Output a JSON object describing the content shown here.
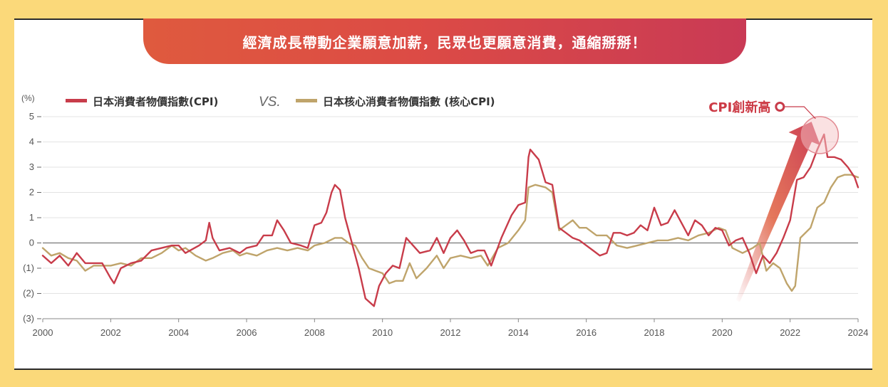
{
  "banner": {
    "title": "經濟成長帶動企業願意加薪，民眾也更願意消費，通縮掰掰！"
  },
  "colors": {
    "cpi": "#c83c4a",
    "core_cpi": "#bfa46b",
    "banner_start": "#df5a3e",
    "banner_end": "#c93a55",
    "background": "#fbd97a"
  },
  "annotation": {
    "label": "CPI創新高"
  },
  "chart_data": {
    "type": "line",
    "title": "",
    "unit_label": "(%)",
    "xlabel": "",
    "ylabel": "",
    "xlim": [
      2000,
      2024
    ],
    "ylim": [
      -3,
      5
    ],
    "x_ticks": [
      2000,
      2002,
      2004,
      2006,
      2008,
      2010,
      2012,
      2014,
      2016,
      2018,
      2020,
      2022,
      2024
    ],
    "y_ticks": [
      5,
      4,
      3,
      2,
      1,
      0,
      -1,
      -2,
      -3
    ],
    "y_tick_labels": [
      "5",
      "4",
      "3",
      "2",
      "1",
      "0",
      "(1)",
      "(2)",
      "(3)"
    ],
    "legend_separator": "VS.",
    "legend_position": "top-left",
    "grid": true,
    "series": [
      {
        "name": "日本消費者物價指數(CPI)",
        "color": "#c83c4a",
        "points": [
          [
            2000.0,
            -0.5
          ],
          [
            2000.25,
            -0.8
          ],
          [
            2000.5,
            -0.5
          ],
          [
            2000.75,
            -0.9
          ],
          [
            2001.0,
            -0.4
          ],
          [
            2001.25,
            -0.8
          ],
          [
            2001.5,
            -0.8
          ],
          [
            2001.75,
            -0.8
          ],
          [
            2002.0,
            -1.4
          ],
          [
            2002.1,
            -1.6
          ],
          [
            2002.3,
            -1.0
          ],
          [
            2002.6,
            -0.8
          ],
          [
            2002.9,
            -0.7
          ],
          [
            2003.2,
            -0.3
          ],
          [
            2003.5,
            -0.2
          ],
          [
            2003.8,
            -0.1
          ],
          [
            2004.0,
            -0.1
          ],
          [
            2004.2,
            -0.4
          ],
          [
            2004.6,
            -0.1
          ],
          [
            2004.8,
            0.1
          ],
          [
            2004.9,
            0.8
          ],
          [
            2005.0,
            0.2
          ],
          [
            2005.2,
            -0.3
          ],
          [
            2005.5,
            -0.2
          ],
          [
            2005.8,
            -0.4
          ],
          [
            2006.0,
            -0.2
          ],
          [
            2006.3,
            -0.1
          ],
          [
            2006.5,
            0.3
          ],
          [
            2006.75,
            0.3
          ],
          [
            2006.9,
            0.9
          ],
          [
            2007.1,
            0.5
          ],
          [
            2007.3,
            0.0
          ],
          [
            2007.6,
            -0.1
          ],
          [
            2007.8,
            -0.2
          ],
          [
            2008.0,
            0.7
          ],
          [
            2008.2,
            0.8
          ],
          [
            2008.35,
            1.2
          ],
          [
            2008.5,
            2.0
          ],
          [
            2008.6,
            2.3
          ],
          [
            2008.75,
            2.1
          ],
          [
            2008.9,
            1.0
          ],
          [
            2009.1,
            0.0
          ],
          [
            2009.3,
            -1.0
          ],
          [
            2009.5,
            -2.2
          ],
          [
            2009.75,
            -2.5
          ],
          [
            2009.9,
            -1.7
          ],
          [
            2010.1,
            -1.2
          ],
          [
            2010.3,
            -0.9
          ],
          [
            2010.5,
            -1.0
          ],
          [
            2010.7,
            0.2
          ],
          [
            2010.9,
            -0.1
          ],
          [
            2011.1,
            -0.4
          ],
          [
            2011.4,
            -0.3
          ],
          [
            2011.6,
            0.2
          ],
          [
            2011.8,
            -0.4
          ],
          [
            2012.0,
            0.2
          ],
          [
            2012.2,
            0.5
          ],
          [
            2012.4,
            0.1
          ],
          [
            2012.6,
            -0.4
          ],
          [
            2012.8,
            -0.3
          ],
          [
            2013.0,
            -0.3
          ],
          [
            2013.2,
            -0.9
          ],
          [
            2013.5,
            0.2
          ],
          [
            2013.8,
            1.1
          ],
          [
            2014.0,
            1.5
          ],
          [
            2014.2,
            1.6
          ],
          [
            2014.3,
            3.4
          ],
          [
            2014.35,
            3.7
          ],
          [
            2014.6,
            3.3
          ],
          [
            2014.8,
            2.4
          ],
          [
            2015.0,
            2.3
          ],
          [
            2015.2,
            0.6
          ],
          [
            2015.4,
            0.4
          ],
          [
            2015.6,
            0.2
          ],
          [
            2015.8,
            0.1
          ],
          [
            2016.0,
            -0.1
          ],
          [
            2016.2,
            -0.3
          ],
          [
            2016.4,
            -0.5
          ],
          [
            2016.6,
            -0.4
          ],
          [
            2016.8,
            0.4
          ],
          [
            2017.0,
            0.4
          ],
          [
            2017.2,
            0.3
          ],
          [
            2017.4,
            0.4
          ],
          [
            2017.6,
            0.7
          ],
          [
            2017.8,
            0.5
          ],
          [
            2018.0,
            1.4
          ],
          [
            2018.2,
            0.7
          ],
          [
            2018.4,
            0.8
          ],
          [
            2018.6,
            1.3
          ],
          [
            2018.8,
            0.8
          ],
          [
            2019.0,
            0.3
          ],
          [
            2019.2,
            0.9
          ],
          [
            2019.4,
            0.7
          ],
          [
            2019.6,
            0.3
          ],
          [
            2019.8,
            0.6
          ],
          [
            2020.0,
            0.5
          ],
          [
            2020.2,
            -0.1
          ],
          [
            2020.4,
            0.1
          ],
          [
            2020.6,
            0.2
          ],
          [
            2020.8,
            -0.4
          ],
          [
            2021.0,
            -1.2
          ],
          [
            2021.2,
            -0.5
          ],
          [
            2021.4,
            -0.8
          ],
          [
            2021.6,
            -0.4
          ],
          [
            2021.8,
            0.2
          ],
          [
            2022.0,
            0.9
          ],
          [
            2022.2,
            2.5
          ],
          [
            2022.4,
            2.6
          ],
          [
            2022.6,
            3.0
          ],
          [
            2022.8,
            3.7
          ],
          [
            2023.0,
            4.3
          ],
          [
            2023.1,
            3.4
          ],
          [
            2023.3,
            3.4
          ],
          [
            2023.5,
            3.3
          ],
          [
            2023.7,
            3.0
          ],
          [
            2023.9,
            2.6
          ],
          [
            2024.0,
            2.2
          ]
        ]
      },
      {
        "name": "日本核心消費者物價指數 (核心CPI)",
        "color": "#bfa46b",
        "points": [
          [
            2000.0,
            -0.2
          ],
          [
            2000.25,
            -0.5
          ],
          [
            2000.5,
            -0.4
          ],
          [
            2000.75,
            -0.6
          ],
          [
            2001.0,
            -0.7
          ],
          [
            2001.25,
            -1.1
          ],
          [
            2001.5,
            -0.9
          ],
          [
            2001.75,
            -0.9
          ],
          [
            2002.0,
            -0.9
          ],
          [
            2002.3,
            -0.8
          ],
          [
            2002.6,
            -0.9
          ],
          [
            2002.9,
            -0.6
          ],
          [
            2003.2,
            -0.6
          ],
          [
            2003.5,
            -0.4
          ],
          [
            2003.8,
            -0.1
          ],
          [
            2004.0,
            -0.3
          ],
          [
            2004.2,
            -0.2
          ],
          [
            2004.5,
            -0.5
          ],
          [
            2004.8,
            -0.7
          ],
          [
            2005.0,
            -0.6
          ],
          [
            2005.3,
            -0.4
          ],
          [
            2005.6,
            -0.3
          ],
          [
            2005.8,
            -0.5
          ],
          [
            2006.0,
            -0.4
          ],
          [
            2006.3,
            -0.5
          ],
          [
            2006.6,
            -0.3
          ],
          [
            2006.9,
            -0.2
          ],
          [
            2007.2,
            -0.3
          ],
          [
            2007.5,
            -0.2
          ],
          [
            2007.8,
            -0.3
          ],
          [
            2008.0,
            -0.1
          ],
          [
            2008.3,
            0.0
          ],
          [
            2008.6,
            0.2
          ],
          [
            2008.8,
            0.2
          ],
          [
            2009.0,
            0.0
          ],
          [
            2009.2,
            -0.1
          ],
          [
            2009.4,
            -0.6
          ],
          [
            2009.6,
            -1.0
          ],
          [
            2009.8,
            -1.1
          ],
          [
            2010.0,
            -1.2
          ],
          [
            2010.2,
            -1.6
          ],
          [
            2010.4,
            -1.5
          ],
          [
            2010.6,
            -1.5
          ],
          [
            2010.8,
            -0.8
          ],
          [
            2011.0,
            -1.4
          ],
          [
            2011.3,
            -1.0
          ],
          [
            2011.6,
            -0.5
          ],
          [
            2011.8,
            -1.0
          ],
          [
            2012.0,
            -0.6
          ],
          [
            2012.3,
            -0.5
          ],
          [
            2012.6,
            -0.6
          ],
          [
            2012.9,
            -0.5
          ],
          [
            2013.1,
            -0.9
          ],
          [
            2013.4,
            -0.2
          ],
          [
            2013.7,
            0.0
          ],
          [
            2014.0,
            0.5
          ],
          [
            2014.2,
            0.9
          ],
          [
            2014.3,
            2.2
          ],
          [
            2014.5,
            2.3
          ],
          [
            2014.8,
            2.2
          ],
          [
            2015.0,
            2.0
          ],
          [
            2015.2,
            0.5
          ],
          [
            2015.4,
            0.7
          ],
          [
            2015.6,
            0.9
          ],
          [
            2015.8,
            0.6
          ],
          [
            2016.0,
            0.6
          ],
          [
            2016.3,
            0.3
          ],
          [
            2016.6,
            0.3
          ],
          [
            2016.9,
            -0.1
          ],
          [
            2017.2,
            -0.2
          ],
          [
            2017.5,
            -0.1
          ],
          [
            2017.8,
            0.0
          ],
          [
            2018.1,
            0.1
          ],
          [
            2018.4,
            0.1
          ],
          [
            2018.7,
            0.2
          ],
          [
            2019.0,
            0.1
          ],
          [
            2019.3,
            0.3
          ],
          [
            2019.6,
            0.4
          ],
          [
            2019.9,
            0.6
          ],
          [
            2020.1,
            0.5
          ],
          [
            2020.3,
            -0.2
          ],
          [
            2020.6,
            -0.4
          ],
          [
            2020.9,
            -0.2
          ],
          [
            2021.1,
            0.0
          ],
          [
            2021.3,
            -1.1
          ],
          [
            2021.5,
            -0.8
          ],
          [
            2021.7,
            -1.0
          ],
          [
            2021.9,
            -1.6
          ],
          [
            2022.05,
            -1.9
          ],
          [
            2022.15,
            -1.7
          ],
          [
            2022.3,
            0.2
          ],
          [
            2022.6,
            0.6
          ],
          [
            2022.8,
            1.4
          ],
          [
            2023.0,
            1.6
          ],
          [
            2023.2,
            2.2
          ],
          [
            2023.4,
            2.6
          ],
          [
            2023.6,
            2.7
          ],
          [
            2023.8,
            2.7
          ],
          [
            2024.0,
            2.6
          ]
        ]
      }
    ]
  }
}
